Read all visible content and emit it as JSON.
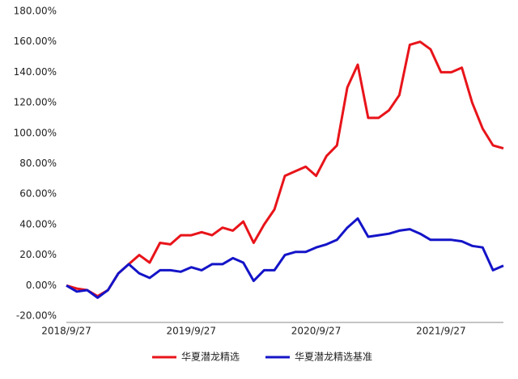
{
  "chart_data": {
    "type": "line",
    "categories": [
      "2018/9/27",
      null,
      null,
      null,
      null,
      null,
      null,
      null,
      null,
      null,
      null,
      null,
      "2019/9/27",
      null,
      null,
      null,
      null,
      null,
      null,
      null,
      null,
      null,
      null,
      null,
      "2020/9/27",
      null,
      null,
      null,
      null,
      null,
      null,
      null,
      null,
      null,
      null,
      null,
      "2021/9/27",
      null,
      null,
      null,
      null,
      null,
      null
    ],
    "series": [
      {
        "name": "华夏潜龙精选",
        "color": "#e8141a",
        "values": [
          0,
          -2,
          -3,
          -7,
          -3,
          8,
          14,
          20,
          15,
          28,
          27,
          33,
          33,
          35,
          33,
          38,
          36,
          42,
          28,
          40,
          50,
          72,
          75,
          78,
          72,
          85,
          92,
          130,
          145,
          110,
          110,
          115,
          125,
          158,
          160,
          155,
          140,
          140,
          143,
          120,
          103,
          92,
          90
        ]
      },
      {
        "name": "华夏潜龙精选基准",
        "color": "#1414c8",
        "values": [
          0,
          -4,
          -3,
          -8,
          -3,
          8,
          14,
          8,
          5,
          10,
          10,
          9,
          12,
          10,
          14,
          14,
          18,
          15,
          3,
          10,
          10,
          20,
          22,
          22,
          25,
          27,
          30,
          38,
          44,
          32,
          33,
          34,
          36,
          37,
          34,
          30,
          30,
          30,
          29,
          26,
          25,
          10,
          13
        ]
      }
    ],
    "ylim": [
      -20,
      180
    ],
    "yticks": [
      {
        "value": -20,
        "label": "-20.00%"
      },
      {
        "value": 0,
        "label": "0.00%"
      },
      {
        "value": 20,
        "label": "20.00%"
      },
      {
        "value": 40,
        "label": "40.00%"
      },
      {
        "value": 60,
        "label": "60.00%"
      },
      {
        "value": 80,
        "label": "80.00%"
      },
      {
        "value": 100,
        "label": "100.00%"
      },
      {
        "value": 120,
        "label": "120.00%"
      },
      {
        "value": 140,
        "label": "140.00%"
      },
      {
        "value": 160,
        "label": "160.00%"
      },
      {
        "value": 180,
        "label": "180.00%"
      }
    ],
    "legend": "bottom"
  }
}
